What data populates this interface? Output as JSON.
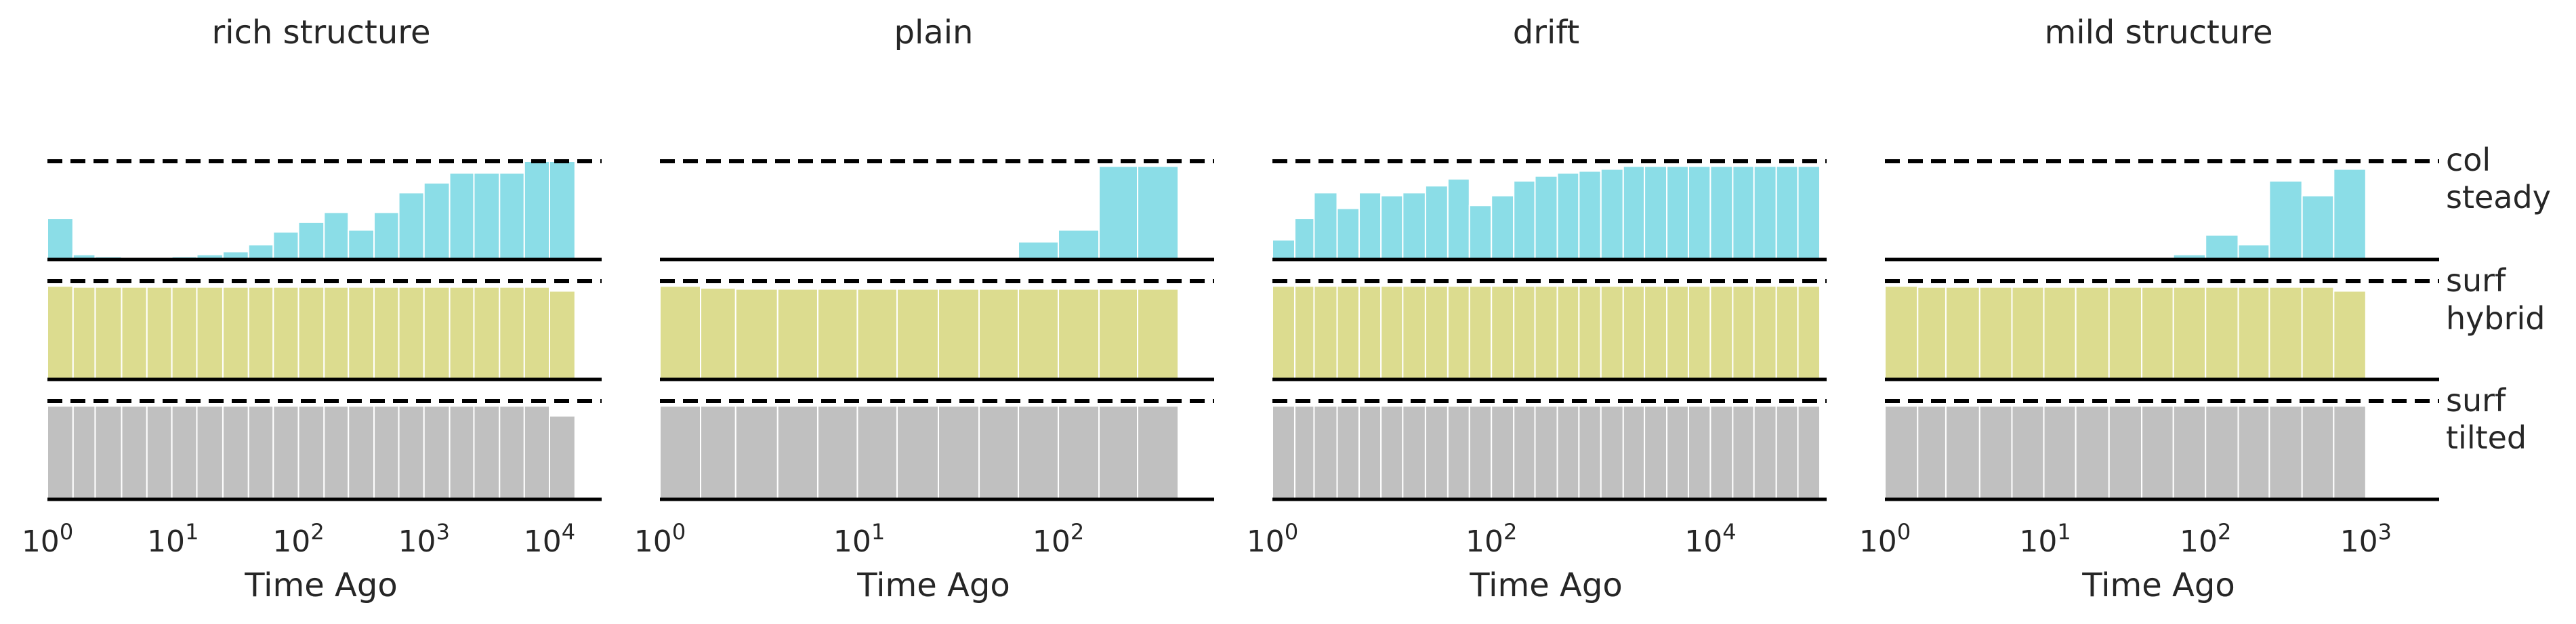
{
  "figure": {
    "xlabel": "Time Ago"
  },
  "row_labels": [
    {
      "line1": "col",
      "line2": "steady"
    },
    {
      "line1": "surf",
      "line2": "hybrid"
    },
    {
      "line1": "surf",
      "line2": "tilted"
    }
  ],
  "colors": {
    "col_steady": "#8bdde7",
    "surf_hybrid": "#dcdc8f",
    "surf_tilted": "#c0c0c0",
    "col_steady_inner": "#c9e6a0",
    "surf_hybrid_inner": "#a8a887",
    "dashed_line": "#000000",
    "axis": "#000000"
  },
  "chart_data": [
    {
      "type": "area",
      "title": "rich structure",
      "xscale": "log",
      "xlim": [
        1,
        23000
      ],
      "xticks": [
        "10^0",
        "10^1",
        "10^2",
        "10^3",
        "10^4"
      ],
      "x_edges": [
        1,
        1.6,
        2.4,
        3.9,
        6.2,
        9.8,
        15.5,
        25,
        40,
        63,
        100,
        160,
        250,
        400,
        630,
        1000,
        1600,
        2500,
        4000,
        6300,
        10000,
        16000
      ],
      "series": [
        {
          "name": "col steady",
          "values": [
            0.42,
            0.05,
            0.03,
            0.02,
            0.02,
            0.03,
            0.05,
            0.08,
            0.15,
            0.28,
            0.38,
            0.48,
            0.3,
            0.48,
            0.68,
            0.78,
            0.88,
            0.88,
            0.88,
            1.0,
            1.0
          ]
        },
        {
          "name": "surf hybrid",
          "values": [
            0.95,
            0.94,
            0.94,
            0.94,
            0.94,
            0.94,
            0.94,
            0.94,
            0.94,
            0.94,
            0.94,
            0.94,
            0.94,
            0.94,
            0.94,
            0.94,
            0.94,
            0.94,
            0.94,
            0.94,
            0.9
          ]
        },
        {
          "name": "surf tilted",
          "values": [
            0.95,
            0.95,
            0.95,
            0.95,
            0.95,
            0.95,
            0.95,
            0.95,
            0.95,
            0.95,
            0.95,
            0.95,
            0.95,
            0.95,
            0.95,
            0.95,
            0.95,
            0.95,
            0.95,
            0.95,
            0.85
          ]
        }
      ]
    },
    {
      "type": "area",
      "title": "plain",
      "xscale": "log",
      "xlim": [
        1,
        560
      ],
      "xticks": [
        "10^0",
        "10^1",
        "10^2"
      ],
      "x_edges": [
        1,
        1.6,
        2.4,
        3.9,
        6.2,
        9.8,
        15.5,
        25,
        40,
        63,
        100,
        160,
        250,
        400
      ],
      "series": [
        {
          "name": "col steady",
          "values": [
            0,
            0,
            0,
            0,
            0,
            0,
            0,
            0,
            0,
            0.18,
            0.3,
            0.95,
            0.95
          ]
        },
        {
          "name": "surf hybrid",
          "values": [
            0.95,
            0.93,
            0.92,
            0.92,
            0.92,
            0.92,
            0.92,
            0.92,
            0.92,
            0.92,
            0.92,
            0.92,
            0.92
          ]
        },
        {
          "name": "surf tilted",
          "values": [
            0.95,
            0.95,
            0.95,
            0.95,
            0.95,
            0.95,
            0.95,
            0.95,
            0.95,
            0.95,
            0.95,
            0.95,
            0.95
          ]
        }
      ]
    },
    {
      "type": "area",
      "title": "drift",
      "xscale": "log",
      "xlim": [
        1,
        100000
      ],
      "xticks": [
        "10^0",
        "10^2",
        "10^4"
      ],
      "x_edges": [
        1,
        1.6,
        2.4,
        3.9,
        6.2,
        9.8,
        15.5,
        25,
        40,
        63,
        100,
        160,
        250,
        400,
        630,
        1000,
        1600,
        2500,
        4000,
        6300,
        10000,
        16000,
        25000,
        40000,
        63000,
        100000
      ],
      "series": [
        {
          "name": "col steady",
          "values": [
            0.2,
            0.42,
            0.68,
            0.52,
            0.68,
            0.65,
            0.68,
            0.75,
            0.82,
            0.55,
            0.65,
            0.8,
            0.85,
            0.88,
            0.9,
            0.92,
            0.95,
            0.95,
            0.95,
            0.95,
            0.95,
            0.95,
            0.95,
            0.95,
            0.95
          ]
        },
        {
          "name": "surf hybrid",
          "values": [
            0.95,
            0.95,
            0.95,
            0.95,
            0.95,
            0.95,
            0.95,
            0.95,
            0.95,
            0.95,
            0.95,
            0.95,
            0.95,
            0.95,
            0.95,
            0.95,
            0.95,
            0.95,
            0.95,
            0.95,
            0.95,
            0.95,
            0.95,
            0.95,
            0.95
          ]
        },
        {
          "name": "surf tilted",
          "values": [
            0.95,
            0.95,
            0.95,
            0.95,
            0.95,
            0.95,
            0.95,
            0.95,
            0.95,
            0.95,
            0.95,
            0.95,
            0.95,
            0.95,
            0.95,
            0.95,
            0.95,
            0.95,
            0.95,
            0.95,
            0.95,
            0.95,
            0.95,
            0.95,
            0.95
          ]
        }
      ]
    },
    {
      "type": "area",
      "title": "mild structure",
      "xscale": "log",
      "xlim": [
        1,
        2600
      ],
      "xticks": [
        "10^0",
        "10^1",
        "10^2",
        "10^3"
      ],
      "x_edges": [
        1,
        1.6,
        2.4,
        3.9,
        6.2,
        9.8,
        15.5,
        25,
        40,
        63,
        100,
        160,
        250,
        400,
        630,
        1000,
        1600
      ],
      "series": [
        {
          "name": "col steady",
          "values": [
            0,
            0,
            0,
            0,
            0,
            0,
            0,
            0,
            0,
            0.05,
            0.25,
            0.15,
            0.8,
            0.65,
            0.92
          ]
        },
        {
          "name": "surf hybrid",
          "values": [
            0.95,
            0.94,
            0.94,
            0.94,
            0.94,
            0.94,
            0.94,
            0.94,
            0.94,
            0.94,
            0.94,
            0.94,
            0.94,
            0.94,
            0.9
          ]
        },
        {
          "name": "surf tilted",
          "values": [
            0.95,
            0.95,
            0.95,
            0.95,
            0.95,
            0.95,
            0.95,
            0.95,
            0.95,
            0.95,
            0.95,
            0.95,
            0.95,
            0.95,
            0.95
          ]
        }
      ]
    }
  ]
}
